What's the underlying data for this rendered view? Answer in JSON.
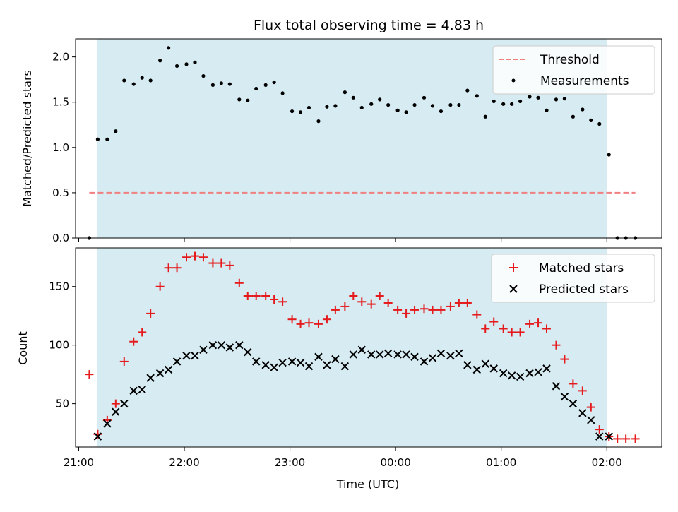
{
  "chart_data": [
    {
      "type": "scatter",
      "title": "Flux total observing time = 4.83 h",
      "xlabel": "",
      "ylabel": "Matched/Predicted stars",
      "ylim": [
        0,
        2.2
      ],
      "yticks": [
        "0.0",
        "0.5",
        "1.0",
        "1.5",
        "2.0"
      ],
      "xlim_hours": [
        20.97,
        26.52
      ],
      "shaded_span_hours": [
        21.17,
        26.0
      ],
      "legend": "top-right",
      "series": [
        {
          "name": "Threshold",
          "style": "dashed-line",
          "color": "#f08080",
          "x_hours": [
            21.1,
            26.27
          ],
          "y": [
            0.5,
            0.5
          ]
        },
        {
          "name": "Measurements",
          "style": "dot",
          "color": "#000000",
          "x_hours": [
            21.1,
            21.18,
            21.27,
            21.35,
            21.43,
            21.52,
            21.6,
            21.68,
            21.77,
            21.85,
            21.93,
            22.02,
            22.1,
            22.18,
            22.27,
            22.35,
            22.43,
            22.52,
            22.6,
            22.68,
            22.77,
            22.85,
            22.93,
            23.02,
            23.1,
            23.18,
            23.27,
            23.35,
            23.43,
            23.52,
            23.6,
            23.68,
            23.77,
            23.85,
            23.93,
            24.02,
            24.1,
            24.18,
            24.27,
            24.35,
            24.43,
            24.52,
            24.6,
            24.68,
            24.77,
            24.85,
            24.93,
            25.02,
            25.1,
            25.18,
            25.27,
            25.35,
            25.43,
            25.52,
            25.6,
            25.68,
            25.77,
            25.85,
            25.93,
            26.02,
            26.1,
            26.18,
            26.27
          ],
          "y": [
            0.0,
            1.09,
            1.09,
            1.18,
            1.74,
            1.7,
            1.77,
            1.74,
            1.96,
            2.1,
            1.9,
            1.92,
            1.94,
            1.79,
            1.69,
            1.71,
            1.7,
            1.53,
            1.52,
            1.65,
            1.69,
            1.72,
            1.6,
            1.4,
            1.39,
            1.44,
            1.29,
            1.45,
            1.46,
            1.61,
            1.55,
            1.44,
            1.48,
            1.53,
            1.47,
            1.41,
            1.39,
            1.47,
            1.55,
            1.46,
            1.4,
            1.47,
            1.47,
            1.63,
            1.57,
            1.34,
            1.51,
            1.48,
            1.48,
            1.51,
            1.56,
            1.55,
            1.41,
            1.53,
            1.54,
            1.34,
            1.42,
            1.3,
            1.26,
            0.92,
            0.0,
            0.0,
            0.0
          ]
        }
      ]
    },
    {
      "type": "scatter",
      "title": "",
      "xlabel": "Time (UTC)",
      "ylabel": "Count",
      "ylim": [
        13,
        183
      ],
      "yticks": [
        "50",
        "100",
        "150"
      ],
      "xlim_hours": [
        20.97,
        26.52
      ],
      "xticks": [
        "21:00",
        "22:00",
        "23:00",
        "00:00",
        "01:00",
        "02:00"
      ],
      "shaded_span_hours": [
        21.17,
        26.0
      ],
      "legend": "top-right",
      "series": [
        {
          "name": "Matched stars",
          "marker": "plus",
          "color": "#e41a1c",
          "x_hours": [
            21.1,
            21.18,
            21.27,
            21.35,
            21.43,
            21.52,
            21.6,
            21.68,
            21.77,
            21.85,
            21.93,
            22.02,
            22.1,
            22.18,
            22.27,
            22.35,
            22.43,
            22.52,
            22.6,
            22.68,
            22.77,
            22.85,
            22.93,
            23.02,
            23.1,
            23.18,
            23.27,
            23.35,
            23.43,
            23.52,
            23.6,
            23.68,
            23.77,
            23.85,
            23.93,
            24.02,
            24.1,
            24.18,
            24.27,
            24.35,
            24.43,
            24.52,
            24.6,
            24.68,
            24.77,
            24.85,
            24.93,
            25.02,
            25.1,
            25.18,
            25.27,
            25.35,
            25.43,
            25.52,
            25.6,
            25.68,
            25.77,
            25.85,
            25.93,
            26.02,
            26.1,
            26.18,
            26.27
          ],
          "y": [
            75,
            24,
            36,
            50,
            86,
            103,
            111,
            127,
            150,
            166,
            166,
            175,
            176,
            175,
            170,
            170,
            168,
            153,
            142,
            142,
            142,
            139,
            137,
            122,
            118,
            119,
            118,
            122,
            130,
            133,
            142,
            137,
            135,
            142,
            136,
            130,
            127,
            130,
            131,
            130,
            130,
            133,
            136,
            136,
            126,
            114,
            120,
            114,
            111,
            111,
            118,
            119,
            114,
            100,
            88,
            67,
            61,
            47,
            28,
            22,
            20,
            20,
            20
          ]
        },
        {
          "name": "Predicted stars",
          "marker": "x",
          "color": "#000000",
          "x_hours": [
            21.18,
            21.27,
            21.35,
            21.43,
            21.52,
            21.6,
            21.68,
            21.77,
            21.85,
            21.93,
            22.02,
            22.1,
            22.18,
            22.27,
            22.35,
            22.43,
            22.52,
            22.6,
            22.68,
            22.77,
            22.85,
            22.93,
            23.02,
            23.1,
            23.18,
            23.27,
            23.35,
            23.43,
            23.52,
            23.6,
            23.68,
            23.77,
            23.85,
            23.93,
            24.02,
            24.1,
            24.18,
            24.27,
            24.35,
            24.43,
            24.52,
            24.6,
            24.68,
            24.77,
            24.85,
            24.93,
            25.02,
            25.1,
            25.18,
            25.27,
            25.35,
            25.43,
            25.52,
            25.6,
            25.68,
            25.77,
            25.85,
            25.93,
            26.02
          ],
          "y": [
            22,
            33,
            43,
            50,
            61,
            62,
            72,
            76,
            79,
            86,
            91,
            91,
            96,
            100,
            100,
            98,
            100,
            94,
            86,
            83,
            81,
            85,
            86,
            85,
            82,
            90,
            83,
            88,
            82,
            92,
            96,
            92,
            92,
            93,
            92,
            92,
            90,
            86,
            89,
            93,
            91,
            93,
            83,
            79,
            84,
            80,
            76,
            74,
            73,
            76,
            77,
            80,
            65,
            56,
            50,
            42,
            36,
            22,
            22
          ]
        }
      ]
    }
  ]
}
